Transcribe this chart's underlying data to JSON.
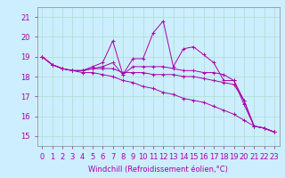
{
  "xlabel": "Windchill (Refroidissement éolien,°C)",
  "background_color": "#cceeff",
  "grid_color": "#aaddcc",
  "line_color": "#aa00aa",
  "x_labels": [
    "0",
    "1",
    "2",
    "3",
    "4",
    "5",
    "6",
    "7",
    "8",
    "9",
    "10",
    "11",
    "12",
    "13",
    "14",
    "15",
    "16",
    "17",
    "18",
    "19",
    "20",
    "21",
    "22",
    "23"
  ],
  "ylim": [
    14.5,
    21.5
  ],
  "yticks": [
    15,
    16,
    17,
    18,
    19,
    20,
    21
  ],
  "series": [
    [
      19.0,
      18.6,
      18.4,
      18.3,
      18.3,
      18.5,
      18.7,
      19.8,
      18.1,
      18.9,
      18.9,
      20.2,
      20.8,
      18.5,
      19.4,
      19.5,
      19.1,
      18.7,
      17.8,
      17.8,
      16.6,
      15.5,
      15.4,
      15.2
    ],
    [
      19.0,
      18.6,
      18.4,
      18.3,
      18.3,
      18.4,
      18.5,
      18.7,
      18.1,
      18.5,
      18.5,
      18.5,
      18.5,
      18.4,
      18.3,
      18.3,
      18.2,
      18.2,
      18.1,
      17.8,
      16.8,
      15.5,
      15.4,
      15.2
    ],
    [
      19.0,
      18.6,
      18.4,
      18.3,
      18.3,
      18.4,
      18.4,
      18.4,
      18.2,
      18.2,
      18.2,
      18.1,
      18.1,
      18.1,
      18.0,
      18.0,
      17.9,
      17.8,
      17.7,
      17.6,
      16.8,
      15.5,
      15.4,
      15.2
    ],
    [
      19.0,
      18.6,
      18.4,
      18.3,
      18.2,
      18.2,
      18.1,
      18.0,
      17.8,
      17.7,
      17.5,
      17.4,
      17.2,
      17.1,
      16.9,
      16.8,
      16.7,
      16.5,
      16.3,
      16.1,
      15.8,
      15.5,
      15.4,
      15.2
    ]
  ]
}
